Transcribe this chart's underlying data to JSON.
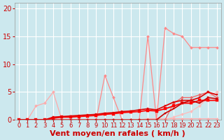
{
  "bg_color": "#cce8ee",
  "grid_color": "#ffffff",
  "xlabel": "Vent moyen/en rafales ( km/h )",
  "xlim": [
    -0.5,
    23.5
  ],
  "ylim": [
    0,
    21
  ],
  "yticks": [
    0,
    5,
    10,
    15,
    20
  ],
  "xticks": [
    0,
    1,
    2,
    3,
    4,
    5,
    6,
    7,
    8,
    9,
    10,
    11,
    12,
    13,
    14,
    15,
    16,
    17,
    18,
    19,
    20,
    21,
    22,
    23
  ],
  "series": [
    {
      "x": [
        0,
        1,
        2,
        3,
        4,
        5,
        6,
        7,
        8,
        9,
        10,
        11,
        12,
        13,
        14,
        15,
        16,
        17,
        18,
        19,
        20,
        21,
        22,
        23
      ],
      "y": [
        0,
        0,
        0,
        0,
        0,
        0,
        0,
        0,
        0,
        0,
        0,
        0,
        0,
        0,
        0,
        0,
        0,
        0,
        0.5,
        1,
        1.5,
        2.5,
        4,
        5
      ],
      "color": "#ffbbbb",
      "lw": 0.9,
      "marker": "D",
      "ms": 2.0
    },
    {
      "x": [
        0,
        1,
        2,
        3,
        4,
        5,
        6,
        7,
        8,
        9,
        10,
        11,
        12,
        13,
        14,
        15,
        16,
        17,
        18,
        19,
        20,
        21,
        22,
        23
      ],
      "y": [
        0,
        0,
        2.5,
        3,
        5,
        0,
        0,
        0,
        0,
        0,
        0,
        0,
        0,
        0,
        0,
        0.2,
        0.2,
        0.2,
        0.2,
        0.2,
        0.2,
        0.2,
        0.2,
        0.2
      ],
      "color": "#ffaaaa",
      "lw": 0.9,
      "marker": "D",
      "ms": 2.0
    },
    {
      "comment": "medium pink - big peaks at x=10-11(~8), x=15(~15), x=17(~16.5), then 15.5, 15, 13",
      "x": [
        0,
        1,
        2,
        3,
        4,
        5,
        6,
        7,
        8,
        9,
        10,
        11,
        12,
        13,
        14,
        15,
        16,
        17,
        18,
        19,
        20,
        21,
        22,
        23
      ],
      "y": [
        0,
        0,
        0,
        0,
        0,
        0,
        0,
        0,
        0,
        0,
        8,
        4,
        0,
        0,
        0,
        15,
        0,
        16.5,
        15.5,
        15,
        13,
        13,
        13,
        13
      ],
      "color": "#ff8888",
      "lw": 0.9,
      "marker": "D",
      "ms": 2.0
    },
    {
      "x": [
        0,
        1,
        2,
        3,
        4,
        5,
        6,
        7,
        8,
        9,
        10,
        11,
        12,
        13,
        14,
        15,
        16,
        17,
        18,
        19,
        20,
        21,
        22,
        23
      ],
      "y": [
        0,
        0,
        0,
        0,
        0,
        0,
        0,
        0,
        0,
        0,
        0,
        0,
        0,
        0,
        0,
        0,
        0,
        0,
        3,
        4,
        4,
        4.5,
        5,
        4
      ],
      "color": "#ee6666",
      "lw": 0.9,
      "marker": "D",
      "ms": 2.0
    },
    {
      "x": [
        0,
        1,
        2,
        3,
        4,
        5,
        6,
        7,
        8,
        9,
        10,
        11,
        12,
        13,
        14,
        15,
        16,
        17,
        18,
        19,
        20,
        21,
        22,
        23
      ],
      "y": [
        0,
        0,
        0,
        0,
        0.3,
        0.5,
        0.5,
        0.6,
        0.7,
        0.8,
        1,
        1.1,
        1.3,
        1.4,
        1.5,
        1.7,
        1.6,
        2.0,
        2.5,
        3,
        3,
        3.5,
        3.5,
        3.5
      ],
      "color": "#ff0000",
      "lw": 1.3,
      "marker": "s",
      "ms": 2.2
    },
    {
      "x": [
        0,
        1,
        2,
        3,
        4,
        5,
        6,
        7,
        8,
        9,
        10,
        11,
        12,
        13,
        14,
        15,
        16,
        17,
        18,
        19,
        20,
        21,
        22,
        23
      ],
      "y": [
        0,
        0,
        0,
        0,
        0,
        0,
        0,
        0,
        0,
        0,
        0,
        0,
        0,
        0,
        0,
        0,
        0,
        1.2,
        2,
        3,
        3.5,
        3,
        4,
        3.8
      ],
      "color": "#cc0000",
      "lw": 1.2,
      "marker": "s",
      "ms": 2.0
    },
    {
      "x": [
        0,
        1,
        2,
        3,
        4,
        5,
        6,
        7,
        8,
        9,
        10,
        11,
        12,
        13,
        14,
        15,
        16,
        17,
        18,
        19,
        20,
        21,
        22,
        23
      ],
      "y": [
        0,
        0,
        0,
        0,
        0.5,
        0.6,
        0.7,
        0.8,
        0.9,
        1,
        1.2,
        1.3,
        1.5,
        1.6,
        1.8,
        2,
        1.8,
        2.5,
        3.2,
        3.5,
        3.5,
        4,
        5,
        4.5
      ],
      "color": "#dd0000",
      "lw": 1.2,
      "marker": "s",
      "ms": 2.0
    }
  ],
  "xlabel_color": "#cc0000",
  "xlabel_fontsize": 8,
  "tick_color": "#cc0000",
  "tick_fontsize": 6,
  "ytick_fontsize": 7
}
